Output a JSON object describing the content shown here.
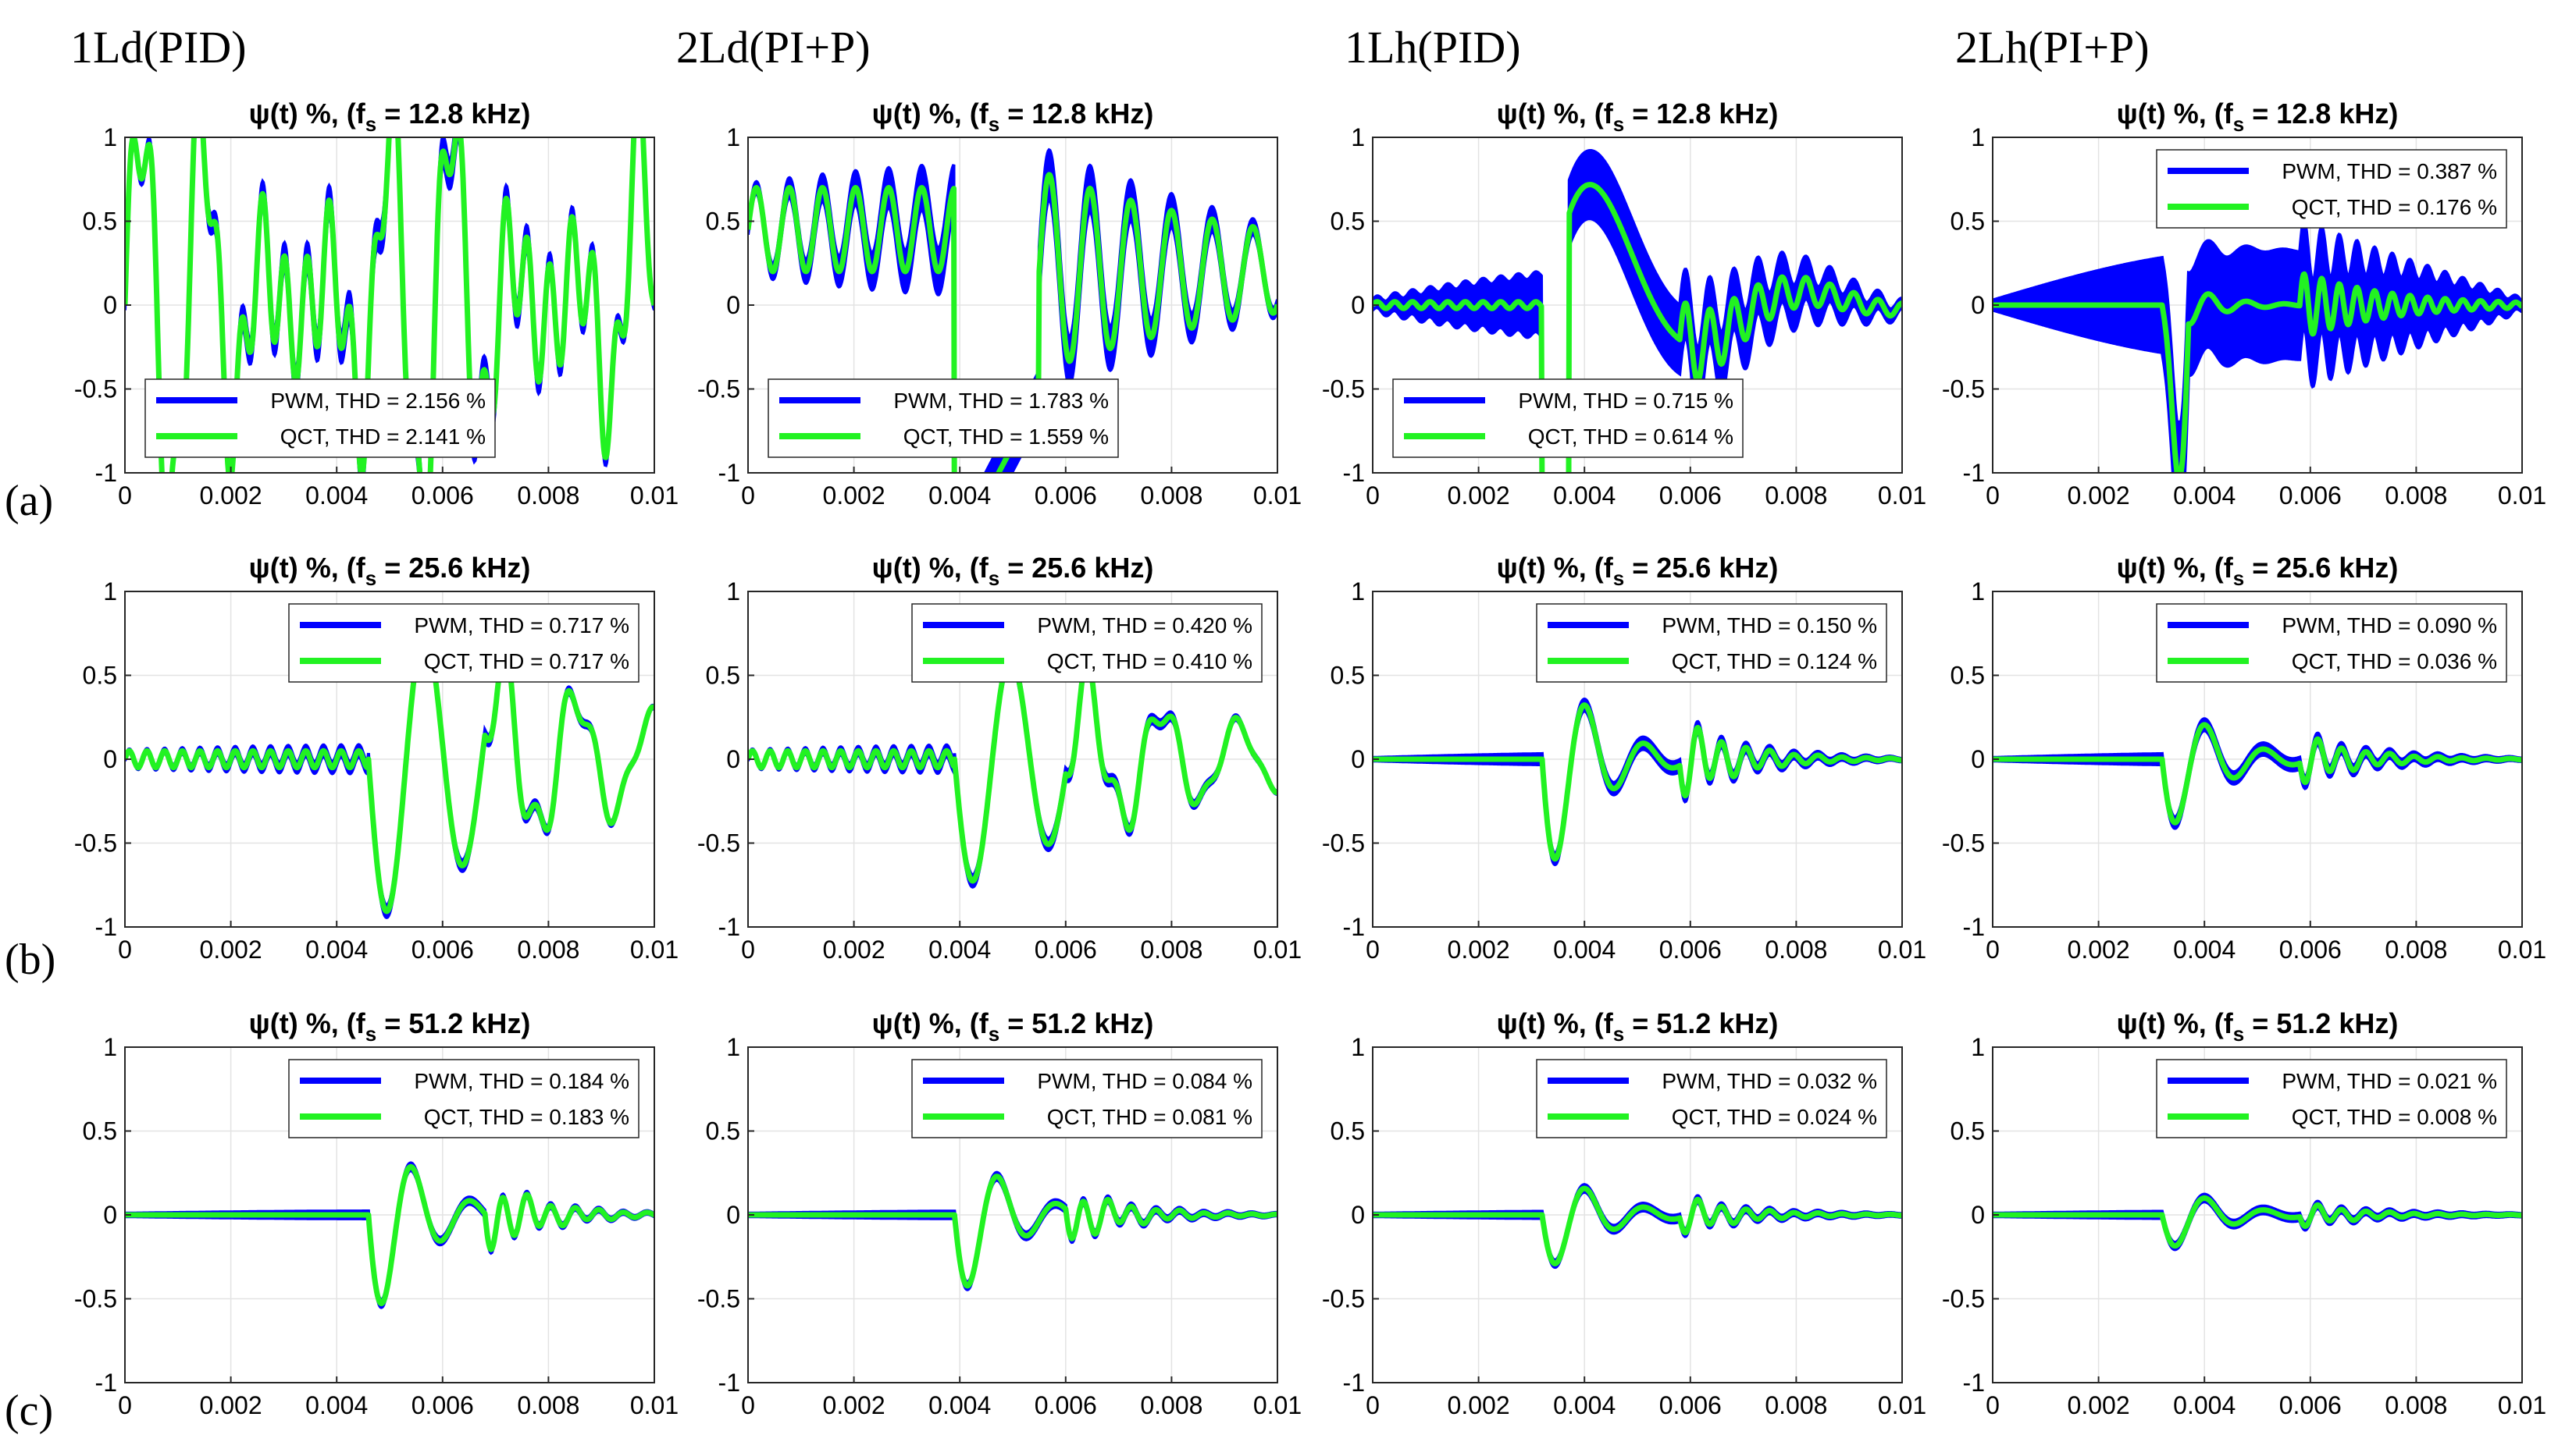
{
  "figure": {
    "columns": [
      {
        "id": "1Ld",
        "label": "1Ld(PID)"
      },
      {
        "id": "2Ld",
        "label": "2Ld(PI+P)"
      },
      {
        "id": "1Lh",
        "label": "1Lh(PID)"
      },
      {
        "id": "2Lh",
        "label": "2Lh(PI+P)"
      }
    ],
    "rows": [
      {
        "id": "a",
        "label": "(a)",
        "fs": "12.8 kHz"
      },
      {
        "id": "b",
        "label": "(b)",
        "fs": "25.6 kHz"
      },
      {
        "id": "c",
        "label": "(c)",
        "fs": "51.2 kHz"
      }
    ],
    "title_prefix": "ψ(t) %, (f",
    "title_sub": "s",
    "title_suffix_prefix": " = ",
    "series_colors": {
      "PWM": "#0000ff",
      "QCT": "#22f222"
    }
  },
  "chart_data": [
    {
      "type": "line",
      "row": "a",
      "column": "1Ld(PID)",
      "title": "ψ(t) %, (fs = 12.8 kHz)",
      "xlim": [
        0,
        0.01
      ],
      "ylim": [
        -1,
        1
      ],
      "xticks": [
        "0",
        "0.002",
        "0.004",
        "0.006",
        "0.008",
        "0.01"
      ],
      "yticks": [
        "1",
        "0.5",
        "0",
        "-0.5",
        "-1"
      ],
      "legend_position": "bottom-left",
      "grid": true,
      "series": [
        {
          "name": "PWM",
          "thd": "PWM, THD = 2.156 %",
          "color": "#0000ff"
        },
        {
          "name": "QCT",
          "thd": "QCT, THD = 2.141 %",
          "color": "#22f222"
        }
      ],
      "description": "large oscillations saturating ±1 throughout"
    },
    {
      "type": "line",
      "row": "a",
      "column": "2Ld(PI+P)",
      "title": "ψ(t) %, (fs = 12.8 kHz)",
      "xlim": [
        0,
        0.01
      ],
      "ylim": [
        -1,
        1
      ],
      "xticks": [
        "0",
        "0.002",
        "0.004",
        "0.006",
        "0.008",
        "0.01"
      ],
      "yticks": [
        "1",
        "0.5",
        "0",
        "-0.5",
        "-1"
      ],
      "legend_position": "bottom-left",
      "grid": true,
      "series": [
        {
          "name": "PWM",
          "thd": "PWM, THD = 1.783 %",
          "color": "#0000ff"
        },
        {
          "name": "QCT",
          "thd": "QCT, THD = 1.559 %",
          "color": "#22f222"
        }
      ]
    },
    {
      "type": "line",
      "row": "a",
      "column": "1Lh(PID)",
      "title": "ψ(t) %, (fs = 12.8 kHz)",
      "xlim": [
        0,
        0.01
      ],
      "ylim": [
        -1,
        1
      ],
      "xticks": [
        "0",
        "0.002",
        "0.004",
        "0.006",
        "0.008",
        "0.01"
      ],
      "yticks": [
        "1",
        "0.5",
        "0",
        "-0.5",
        "-1"
      ],
      "legend_position": "bottom-left",
      "grid": true,
      "series": [
        {
          "name": "PWM",
          "thd": "PWM, THD = 0.715 %",
          "color": "#0000ff"
        },
        {
          "name": "QCT",
          "thd": "QCT, THD = 0.614 %",
          "color": "#22f222"
        }
      ]
    },
    {
      "type": "line",
      "row": "a",
      "column": "2Lh(PI+P)",
      "title": "ψ(t) %, (fs = 12.8 kHz)",
      "xlim": [
        0,
        0.01
      ],
      "ylim": [
        -1,
        1
      ],
      "xticks": [
        "0",
        "0.002",
        "0.004",
        "0.006",
        "0.008",
        "0.01"
      ],
      "yticks": [
        "1",
        "0.5",
        "0",
        "-0.5",
        "-1"
      ],
      "legend_position": "top-right",
      "grid": true,
      "series": [
        {
          "name": "PWM",
          "thd": "PWM, THD = 0.387 %",
          "color": "#0000ff"
        },
        {
          "name": "QCT",
          "thd": "QCT, THD = 0.176 %",
          "color": "#22f222"
        }
      ]
    },
    {
      "type": "line",
      "row": "b",
      "column": "1Ld(PID)",
      "title": "ψ(t) %, (fs = 25.6 kHz)",
      "xlim": [
        0,
        0.01
      ],
      "ylim": [
        -1,
        1
      ],
      "xticks": [
        "0",
        "0.002",
        "0.004",
        "0.006",
        "0.008",
        "0.01"
      ],
      "yticks": [
        "1",
        "0.5",
        "0",
        "-0.5",
        "-1"
      ],
      "legend_position": "top-right",
      "grid": true,
      "series": [
        {
          "name": "PWM",
          "thd": "PWM, THD = 0.717 %",
          "color": "#0000ff"
        },
        {
          "name": "QCT",
          "thd": "QCT, THD = 0.717 %",
          "color": "#22f222"
        }
      ]
    },
    {
      "type": "line",
      "row": "b",
      "column": "2Ld(PI+P)",
      "title": "ψ(t) %, (fs = 25.6 kHz)",
      "xlim": [
        0,
        0.01
      ],
      "ylim": [
        -1,
        1
      ],
      "xticks": [
        "0",
        "0.002",
        "0.004",
        "0.006",
        "0.008",
        "0.01"
      ],
      "yticks": [
        "1",
        "0.5",
        "0",
        "-0.5",
        "-1"
      ],
      "legend_position": "top-right",
      "grid": true,
      "series": [
        {
          "name": "PWM",
          "thd": "PWM, THD = 0.420 %",
          "color": "#0000ff"
        },
        {
          "name": "QCT",
          "thd": "QCT, THD = 0.410 %",
          "color": "#22f222"
        }
      ]
    },
    {
      "type": "line",
      "row": "b",
      "column": "1Lh(PID)",
      "title": "ψ(t) %, (fs = 25.6 kHz)",
      "xlim": [
        0,
        0.01
      ],
      "ylim": [
        -1,
        1
      ],
      "xticks": [
        "0",
        "0.002",
        "0.004",
        "0.006",
        "0.008",
        "0.01"
      ],
      "yticks": [
        "1",
        "0.5",
        "0",
        "-0.5",
        "-1"
      ],
      "legend_position": "top-right",
      "grid": true,
      "series": [
        {
          "name": "PWM",
          "thd": "PWM, THD = 0.150 %",
          "color": "#0000ff"
        },
        {
          "name": "QCT",
          "thd": "QCT, THD = 0.124 %",
          "color": "#22f222"
        }
      ]
    },
    {
      "type": "line",
      "row": "b",
      "column": "2Lh(PI+P)",
      "title": "ψ(t) %, (fs = 25.6 kHz)",
      "xlim": [
        0,
        0.01
      ],
      "ylim": [
        -1,
        1
      ],
      "xticks": [
        "0",
        "0.002",
        "0.004",
        "0.006",
        "0.008",
        "0.01"
      ],
      "yticks": [
        "1",
        "0.5",
        "0",
        "-0.5",
        "-1"
      ],
      "legend_position": "top-right",
      "grid": true,
      "series": [
        {
          "name": "PWM",
          "thd": "PWM, THD = 0.090 %",
          "color": "#0000ff"
        },
        {
          "name": "QCT",
          "thd": "QCT, THD = 0.036 %",
          "color": "#22f222"
        }
      ]
    },
    {
      "type": "line",
      "row": "c",
      "column": "1Ld(PID)",
      "title": "ψ(t) %, (fs = 51.2 kHz)",
      "xlim": [
        0,
        0.01
      ],
      "ylim": [
        -1,
        1
      ],
      "xticks": [
        "0",
        "0.002",
        "0.004",
        "0.006",
        "0.008",
        "0.01"
      ],
      "yticks": [
        "1",
        "0.5",
        "0",
        "-0.5",
        "-1"
      ],
      "legend_position": "top-right",
      "grid": true,
      "series": [
        {
          "name": "PWM",
          "thd": "PWM, THD = 0.184 %",
          "color": "#0000ff"
        },
        {
          "name": "QCT",
          "thd": "QCT, THD = 0.183 %",
          "color": "#22f222"
        }
      ]
    },
    {
      "type": "line",
      "row": "c",
      "column": "2Ld(PI+P)",
      "title": "ψ(t) %, (fs = 51.2 kHz)",
      "xlim": [
        0,
        0.01
      ],
      "ylim": [
        -1,
        1
      ],
      "xticks": [
        "0",
        "0.002",
        "0.004",
        "0.006",
        "0.008",
        "0.01"
      ],
      "yticks": [
        "1",
        "0.5",
        "0",
        "-0.5",
        "-1"
      ],
      "legend_position": "top-right",
      "grid": true,
      "series": [
        {
          "name": "PWM",
          "thd": "PWM, THD = 0.084 %",
          "color": "#0000ff"
        },
        {
          "name": "QCT",
          "thd": "QCT, THD = 0.081 %",
          "color": "#22f222"
        }
      ]
    },
    {
      "type": "line",
      "row": "c",
      "column": "1Lh(PID)",
      "title": "ψ(t) %, (fs = 51.2 kHz)",
      "xlim": [
        0,
        0.01
      ],
      "ylim": [
        -1,
        1
      ],
      "xticks": [
        "0",
        "0.002",
        "0.004",
        "0.006",
        "0.008",
        "0.01"
      ],
      "yticks": [
        "1",
        "0.5",
        "0",
        "-0.5",
        "-1"
      ],
      "legend_position": "top-right",
      "grid": true,
      "series": [
        {
          "name": "PWM",
          "thd": "PWM, THD = 0.032 %",
          "color": "#0000ff"
        },
        {
          "name": "QCT",
          "thd": "QCT, THD = 0.024 %",
          "color": "#22f222"
        }
      ]
    },
    {
      "type": "line",
      "row": "c",
      "column": "2Lh(PI+P)",
      "title": "ψ(t) %, (fs = 51.2 kHz)",
      "xlim": [
        0,
        0.01
      ],
      "ylim": [
        -1,
        1
      ],
      "xticks": [
        "0",
        "0.002",
        "0.004",
        "0.006",
        "0.008",
        "0.01"
      ],
      "yticks": [
        "1",
        "0.5",
        "0",
        "-0.5",
        "-1"
      ],
      "legend_position": "top-right",
      "grid": true,
      "series": [
        {
          "name": "PWM",
          "thd": "PWM, THD = 0.021 %",
          "color": "#0000ff"
        },
        {
          "name": "QCT",
          "thd": "QCT, THD = 0.008 %",
          "color": "#22f222"
        }
      ]
    }
  ]
}
